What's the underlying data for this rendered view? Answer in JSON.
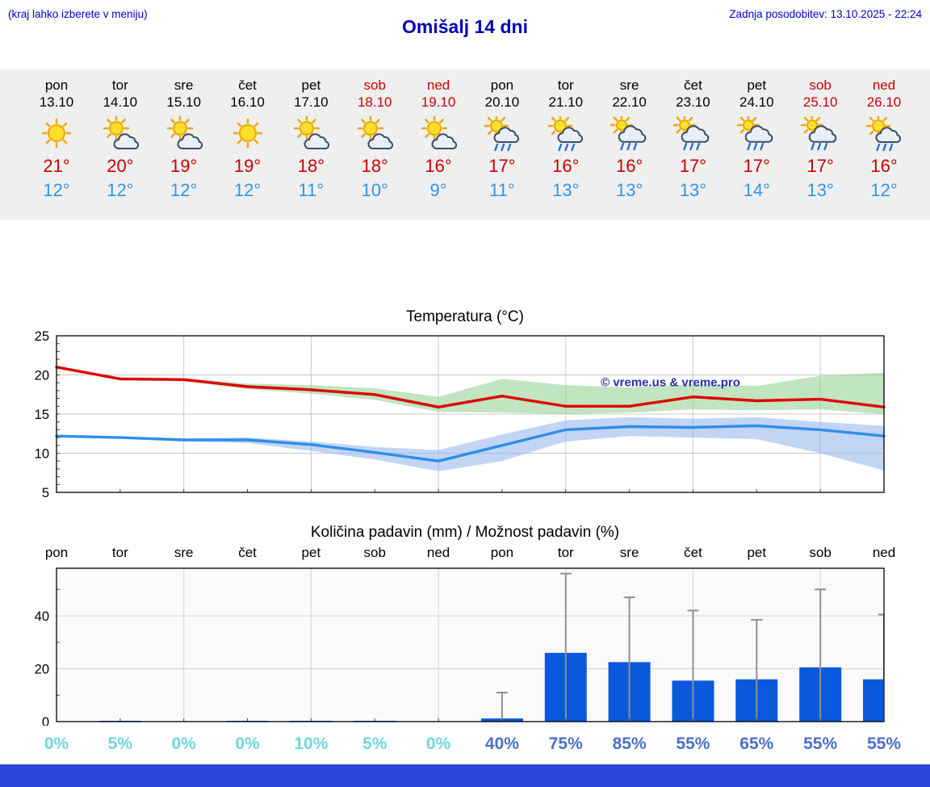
{
  "header": {
    "hint": "(kraj lahko izberete v meniju)",
    "title": "Omišalj 14 dni",
    "updated": "Zadnja posodobitev: 13.10.2025 - 22:24"
  },
  "colors": {
    "header_blue": "#0000cc",
    "title_blue": "#0000bb",
    "weekend_red": "#cc0000",
    "tmax_red": "#cc0000",
    "tmin_blue": "#2f97e8",
    "strip_bg": "#efefef",
    "footer_bar": "#2b46d9"
  },
  "forecast": {
    "days": [
      {
        "day": "pon",
        "date": "13.10",
        "weekend": false,
        "icon": "sun",
        "tmax": "21°",
        "tmin": "12°"
      },
      {
        "day": "tor",
        "date": "14.10",
        "weekend": false,
        "icon": "sun-cloud",
        "tmax": "20°",
        "tmin": "12°"
      },
      {
        "day": "sre",
        "date": "15.10",
        "weekend": false,
        "icon": "sun-cloud",
        "tmax": "19°",
        "tmin": "12°"
      },
      {
        "day": "čet",
        "date": "16.10",
        "weekend": false,
        "icon": "sun",
        "tmax": "19°",
        "tmin": "12°"
      },
      {
        "day": "pet",
        "date": "17.10",
        "weekend": false,
        "icon": "sun-cloud",
        "tmax": "18°",
        "tmin": "11°"
      },
      {
        "day": "sob",
        "date": "18.10",
        "weekend": true,
        "icon": "sun-cloud",
        "tmax": "18°",
        "tmin": "10°"
      },
      {
        "day": "ned",
        "date": "19.10",
        "weekend": true,
        "icon": "sun-cloud",
        "tmax": "16°",
        "tmin": "9°"
      },
      {
        "day": "pon",
        "date": "20.10",
        "weekend": false,
        "icon": "sun-cloud-rain",
        "tmax": "17°",
        "tmin": "11°"
      },
      {
        "day": "tor",
        "date": "21.10",
        "weekend": false,
        "icon": "sun-cloud-rain",
        "tmax": "16°",
        "tmin": "13°"
      },
      {
        "day": "sre",
        "date": "22.10",
        "weekend": false,
        "icon": "cloud-rain",
        "tmax": "16°",
        "tmin": "13°"
      },
      {
        "day": "čet",
        "date": "23.10",
        "weekend": false,
        "icon": "cloud-rain",
        "tmax": "17°",
        "tmin": "13°"
      },
      {
        "day": "pet",
        "date": "24.10",
        "weekend": false,
        "icon": "cloud-rain",
        "tmax": "17°",
        "tmin": "14°"
      },
      {
        "day": "sob",
        "date": "25.10",
        "weekend": true,
        "icon": "cloud-rain",
        "tmax": "17°",
        "tmin": "13°"
      },
      {
        "day": "ned",
        "date": "26.10",
        "weekend": true,
        "icon": "sun-cloud-rain",
        "tmax": "16°",
        "tmin": "12°"
      }
    ]
  },
  "chart_data": [
    {
      "type": "line",
      "title": "Temperatura (°C)",
      "categories": [
        "13.10",
        "14.10",
        "15.10",
        "16.10",
        "17.10",
        "18.10",
        "19.10",
        "20.10",
        "21.10",
        "22.10",
        "23.10",
        "24.10",
        "25.10",
        "26.10"
      ],
      "ylim": [
        5,
        25
      ],
      "yticks": [
        5,
        10,
        15,
        20,
        25
      ],
      "grid": true,
      "watermark": "© vreme.us & vreme.pro",
      "watermark_color": "#2b2bb0",
      "series": [
        {
          "name": "max",
          "color": "#e00000",
          "values": [
            21,
            19.5,
            19.4,
            18.5,
            18.1,
            17.5,
            15.9,
            17.3,
            16.0,
            16.0,
            17.2,
            16.7,
            16.9,
            15.9
          ]
        },
        {
          "name": "min",
          "color": "#2e8fe8",
          "values": [
            12.2,
            12.0,
            11.7,
            11.7,
            11.1,
            10.1,
            9.0,
            11.0,
            13.0,
            13.4,
            13.3,
            13.5,
            13.0,
            12.2
          ]
        }
      ],
      "bands": [
        {
          "name": "max-range",
          "color": "#8cd08c",
          "lower": [
            21,
            19.3,
            19.2,
            18.2,
            17.6,
            16.8,
            15.3,
            15.2,
            15.0,
            15.2,
            15.6,
            15.5,
            15.6,
            15.0
          ],
          "upper": [
            21,
            19.7,
            19.6,
            18.9,
            18.7,
            18.3,
            17.2,
            19.5,
            18.7,
            18.4,
            18.8,
            18.6,
            19.9,
            20.3
          ]
        },
        {
          "name": "min-range",
          "color": "#8fb2ec",
          "lower": [
            12.2,
            11.9,
            11.5,
            11.3,
            10.3,
            9.2,
            7.7,
            9.0,
            11.5,
            12.2,
            12.0,
            11.8,
            10.0,
            7.8
          ],
          "upper": [
            12.2,
            12.1,
            11.9,
            12.0,
            11.5,
            10.8,
            10.4,
            12.4,
            14.2,
            14.6,
            14.4,
            14.6,
            14.0,
            13.5
          ]
        }
      ]
    },
    {
      "type": "bar",
      "title": "Količina padavin (mm) / Možnost padavin (%)",
      "categories": [
        "pon",
        "tor",
        "sre",
        "čet",
        "pet",
        "sob",
        "ned",
        "pon",
        "tor",
        "sre",
        "čet",
        "pet",
        "sob",
        "ned"
      ],
      "values": [
        0,
        0.3,
        0.1,
        0.3,
        0.3,
        0.3,
        0.1,
        1.2,
        26,
        22.5,
        15.5,
        16,
        20.5,
        16
      ],
      "whisker_max": [
        0,
        0,
        0,
        0,
        0,
        0,
        0,
        11,
        56,
        47,
        42,
        38.5,
        50,
        40.5
      ],
      "probabilities": [
        {
          "label": "0%",
          "level": "low"
        },
        {
          "label": "5%",
          "level": "low"
        },
        {
          "label": "0%",
          "level": "low"
        },
        {
          "label": "0%",
          "level": "low"
        },
        {
          "label": "10%",
          "level": "low"
        },
        {
          "label": "5%",
          "level": "low"
        },
        {
          "label": "0%",
          "level": "low"
        },
        {
          "label": "40%",
          "level": "high"
        },
        {
          "label": "75%",
          "level": "high"
        },
        {
          "label": "85%",
          "level": "high"
        },
        {
          "label": "55%",
          "level": "high"
        },
        {
          "label": "65%",
          "level": "high"
        },
        {
          "label": "55%",
          "level": "high"
        },
        {
          "label": "55%",
          "level": "high"
        }
      ],
      "ylim": [
        0,
        58
      ],
      "yticks": [
        0,
        20,
        40
      ],
      "bar_color": "#0a58dc",
      "whisker_color": "#909090",
      "prob_colors": {
        "low": "#72d5dc",
        "high": "#4a70c8"
      }
    }
  ]
}
